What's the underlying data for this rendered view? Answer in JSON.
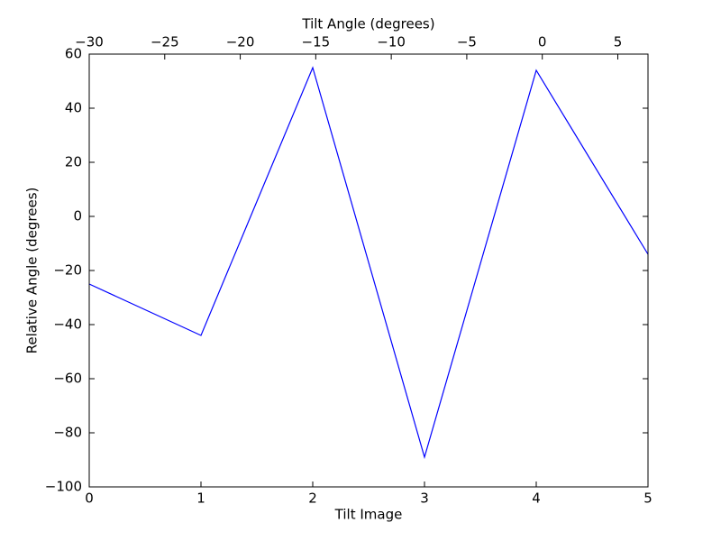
{
  "chart_data": {
    "type": "line",
    "xlabel": "Tilt Image",
    "ylabel": "Relative Angle (degrees)",
    "x2label": "Tilt Angle (degrees)",
    "x": [
      0,
      1,
      2,
      3,
      4,
      5
    ],
    "values": [
      -25,
      -44,
      55,
      -89,
      54,
      -14
    ],
    "color": "#0000ff",
    "xlim": [
      0,
      5
    ],
    "xticks": [
      0,
      1,
      2,
      3,
      4,
      5
    ],
    "x2lim": [
      -30,
      7
    ],
    "x2ticks": [
      {
        "value": -30,
        "label": "−30"
      },
      {
        "value": -25,
        "label": "−25"
      },
      {
        "value": -20,
        "label": "−20"
      },
      {
        "value": -15,
        "label": "−15"
      },
      {
        "value": -10,
        "label": "−10"
      },
      {
        "value": -5,
        "label": "−5"
      },
      0,
      5
    ],
    "ylim": [
      -100,
      60
    ],
    "yticks": [
      {
        "value": -100,
        "label": "−100"
      },
      {
        "value": -80,
        "label": "−80"
      },
      {
        "value": -60,
        "label": "−60"
      },
      {
        "value": -40,
        "label": "−40"
      },
      {
        "value": -20,
        "label": "−20"
      },
      0,
      20,
      40,
      60
    ],
    "grid": false
  }
}
